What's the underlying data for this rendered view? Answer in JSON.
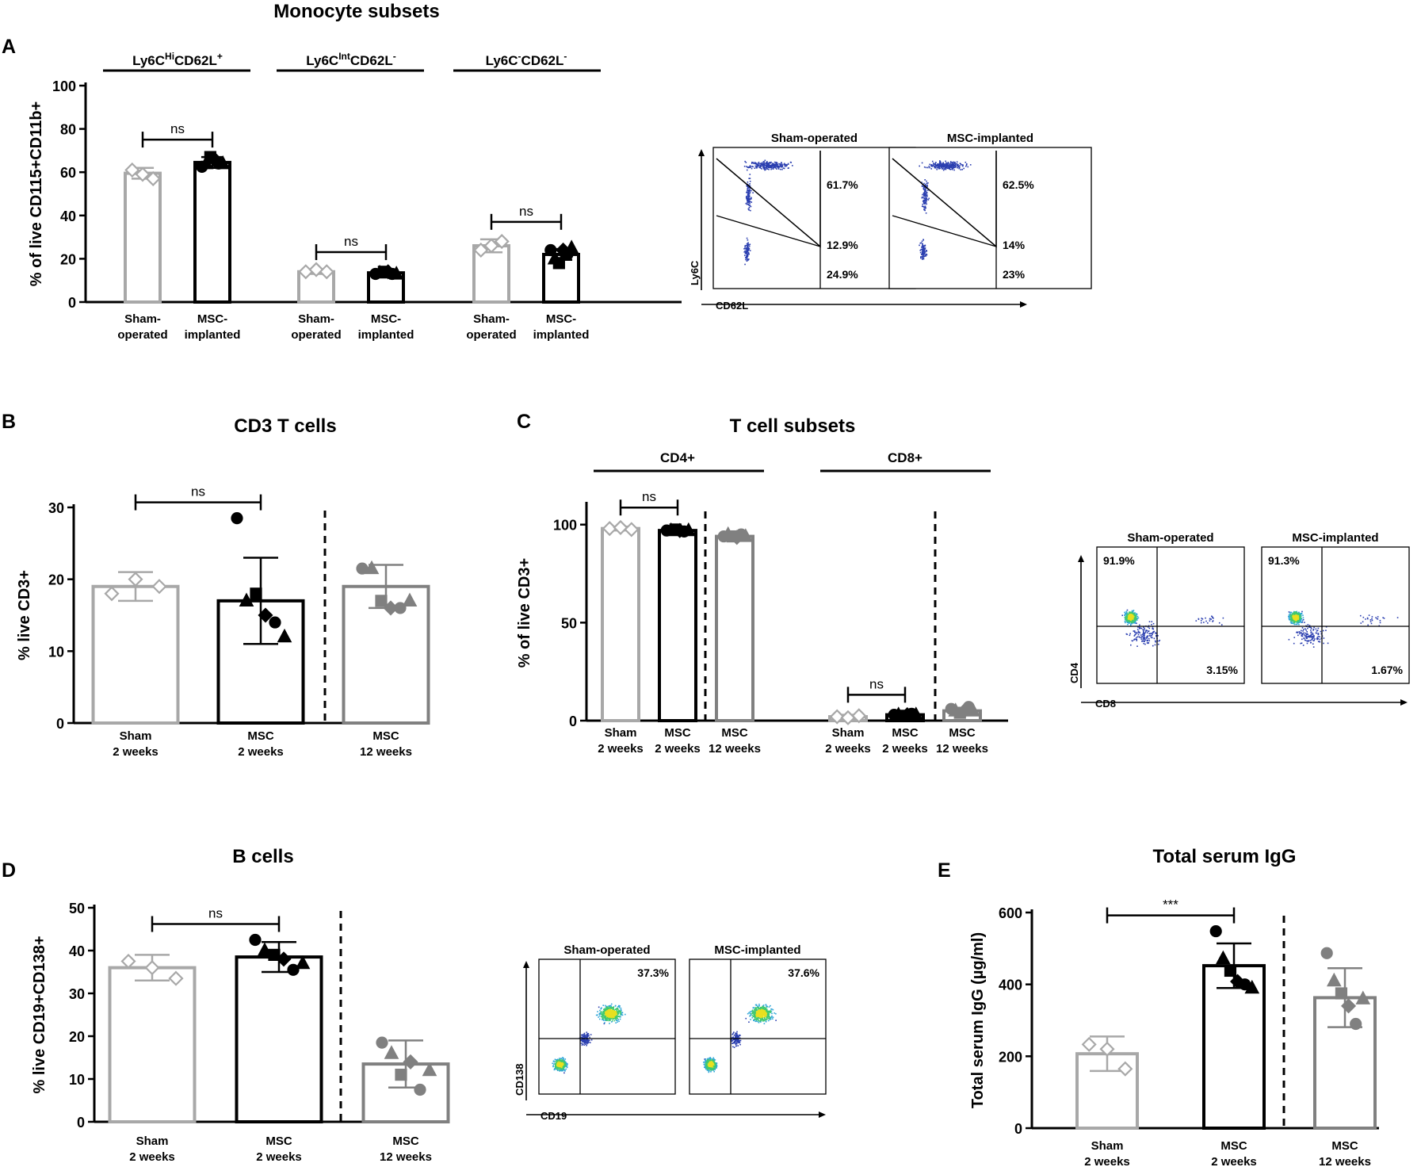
{
  "panels": {
    "A": {
      "letter": "A",
      "title": "Monocyte subsets",
      "subsets": [
        {
          "base": "Ly6C",
          "sup1": "Hi",
          "mid": "CD62L",
          "sup2": "+"
        },
        {
          "base": "Ly6C",
          "sup1": "Int",
          "mid": "CD62L",
          "sup2": "-"
        },
        {
          "base": "Ly6C",
          "sup1": "-",
          "mid": "CD62L",
          "sup2": "-"
        }
      ],
      "flow_titles": [
        "Sham-operated",
        "MSC-implanted"
      ],
      "flow_pcts": [
        [
          "61.7%",
          "12.9%",
          "24.9%"
        ],
        [
          "62.5%",
          "14%",
          "23%"
        ]
      ],
      "flow_xlabel": "CD62L",
      "flow_ylabel": "Ly6C"
    },
    "B": {
      "letter": "B",
      "title": "CD3 T cells"
    },
    "C": {
      "letter": "C",
      "title": "T cell subsets",
      "subsets": [
        "CD4+",
        "CD8+"
      ],
      "flow_titles": [
        "Sham-operated",
        "MSC-implanted"
      ],
      "flow_pcts": [
        [
          "91.9%",
          "3.15%"
        ],
        [
          "91.3%",
          "1.67%"
        ]
      ],
      "flow_xlabel": "CD8",
      "flow_ylabel": "CD4"
    },
    "D": {
      "letter": "D",
      "title": "B cells",
      "flow_titles": [
        "Sham-operated",
        "MSC-implanted"
      ],
      "flow_pcts": [
        "37.3%",
        "37.6%"
      ],
      "flow_xlabel": "CD19",
      "flow_ylabel": "CD138"
    },
    "E": {
      "letter": "E",
      "title": "Total serum IgG"
    }
  },
  "colors": {
    "sham": "#a8a8a8",
    "msc2": "#000000",
    "msc12": "#808080"
  },
  "chart_data": [
    {
      "panel": "A",
      "type": "bar",
      "ylabel": "% of live CD115+CD11b+",
      "ylim": [
        0,
        100
      ],
      "yticks": [
        0,
        20,
        40,
        60,
        80,
        100
      ],
      "groups": [
        {
          "bars": [
            {
              "label": "Sham-\noperated",
              "mean": 59.5,
              "sd": 2.5,
              "points": [
                61,
                59,
                57
              ],
              "color": "sham"
            },
            {
              "label": "MSC-\nimplanted",
              "mean": 64.5,
              "sd": 2.5,
              "points": [
                62.5,
                64,
                67,
                66,
                64,
                64
              ],
              "color": "msc2"
            }
          ],
          "sig": "ns"
        },
        {
          "bars": [
            {
              "label": "Sham-\noperated",
              "mean": 14,
              "sd": 1,
              "points": [
                14,
                15,
                14
              ],
              "color": "sham"
            },
            {
              "label": "MSC-\nimplanted",
              "mean": 13.5,
              "sd": 1,
              "points": [
                13,
                13.5,
                14,
                14,
                13,
                13
              ],
              "color": "msc2"
            }
          ],
          "sig": "ns"
        },
        {
          "bars": [
            {
              "label": "Sham-\noperated",
              "mean": 26,
              "sd": 3,
              "points": [
                24,
                26,
                28
              ],
              "color": "sham"
            },
            {
              "label": "MSC-\nimplanted",
              "mean": 22,
              "sd": 2.5,
              "points": [
                24,
                20,
                18,
                24,
                22,
                25
              ],
              "color": "msc2"
            }
          ],
          "sig": "ns"
        }
      ]
    },
    {
      "panel": "B",
      "type": "bar",
      "ylabel": "% live CD3+",
      "ylim": [
        0,
        30
      ],
      "yticks": [
        0,
        10,
        20,
        30
      ],
      "bars": [
        {
          "label": "Sham\n2 weeks",
          "mean": 19,
          "sd": 2,
          "points": [
            18,
            20,
            19
          ],
          "color": "sham"
        },
        {
          "label": "MSC\n2 weeks",
          "mean": 17,
          "sd": 6,
          "points": [
            28.5,
            17,
            18,
            15,
            14,
            12
          ],
          "color": "msc2"
        },
        {
          "label": "MSC\n12 weeks",
          "mean": 19,
          "sd": 3,
          "points": [
            21.5,
            21.5,
            17,
            16,
            16,
            17
          ],
          "color": "msc12"
        }
      ],
      "sig": [
        {
          "between": [
            0,
            1
          ],
          "text": "ns"
        }
      ]
    },
    {
      "panel": "C",
      "type": "bar",
      "ylabel": "% of live CD3+",
      "ylim": [
        0,
        110
      ],
      "yticks": [
        0,
        50,
        100
      ],
      "groups": [
        {
          "bars": [
            {
              "label": "Sham\n2 weeks",
              "mean": 98,
              "sd": 1,
              "points": [
                98,
                98.5,
                97.5
              ],
              "color": "sham"
            },
            {
              "label": "MSC\n2 weeks",
              "mean": 97,
              "sd": 1,
              "points": [
                97,
                97,
                97.5,
                97,
                96.5,
                97
              ],
              "color": "msc2"
            },
            {
              "label": "MSC\n12 weeks",
              "mean": 94,
              "sd": 1,
              "points": [
                94,
                95,
                94,
                93.5,
                95,
                94
              ],
              "color": "msc12"
            }
          ],
          "sig": "ns"
        },
        {
          "bars": [
            {
              "label": "Sham\n2 weeks",
              "mean": 2,
              "sd": 1,
              "points": [
                2,
                1.5,
                2.5
              ],
              "color": "sham"
            },
            {
              "label": "MSC\n2 weeks",
              "mean": 3,
              "sd": 0.5,
              "points": [
                3,
                3,
                2.5,
                3,
                3.5,
                3
              ],
              "color": "msc2"
            },
            {
              "label": "MSC\n12 weeks",
              "mean": 5,
              "sd": 1.5,
              "points": [
                6,
                5,
                4,
                5,
                7,
                5
              ],
              "color": "msc12"
            }
          ],
          "sig": "ns"
        }
      ]
    },
    {
      "panel": "D",
      "type": "bar",
      "ylabel": "% live CD19+CD138+",
      "ylim": [
        0,
        50
      ],
      "yticks": [
        0,
        10,
        20,
        30,
        40,
        50
      ],
      "bars": [
        {
          "label": "Sham\n2 weeks",
          "mean": 36,
          "sd": 3,
          "points": [
            37.5,
            36,
            33.5
          ],
          "color": "sham"
        },
        {
          "label": "MSC\n2 weeks",
          "mean": 38.5,
          "sd": 3.5,
          "points": [
            42.5,
            40,
            39,
            38,
            35.5,
            37
          ],
          "color": "msc2"
        },
        {
          "label": "MSC\n12 weeks",
          "mean": 13.5,
          "sd": 5.5,
          "points": [
            18.5,
            16,
            11,
            14,
            7.5,
            12
          ],
          "color": "msc12"
        }
      ],
      "sig": [
        {
          "between": [
            0,
            1
          ],
          "text": "ns"
        }
      ]
    },
    {
      "panel": "E",
      "type": "bar",
      "ylabel": "Total serum IgG (µg/ml)",
      "ylim": [
        0,
        600
      ],
      "yticks": [
        0,
        200,
        400,
        600
      ],
      "bars": [
        {
          "label": "Sham\n2 weeks",
          "mean": 207,
          "sd": 48,
          "points": [
            233,
            220,
            165
          ],
          "color": "sham"
        },
        {
          "label": "MSC\n2 weeks",
          "mean": 452,
          "sd": 62,
          "points": [
            548,
            472,
            438,
            408,
            400,
            390
          ],
          "color": "msc2"
        },
        {
          "label": "MSC\n12 weeks",
          "mean": 363,
          "sd": 82,
          "points": [
            487,
            410,
            375,
            340,
            290,
            360
          ],
          "color": "msc12"
        }
      ],
      "sig": [
        {
          "between": [
            0,
            1
          ],
          "text": "***"
        }
      ]
    }
  ]
}
